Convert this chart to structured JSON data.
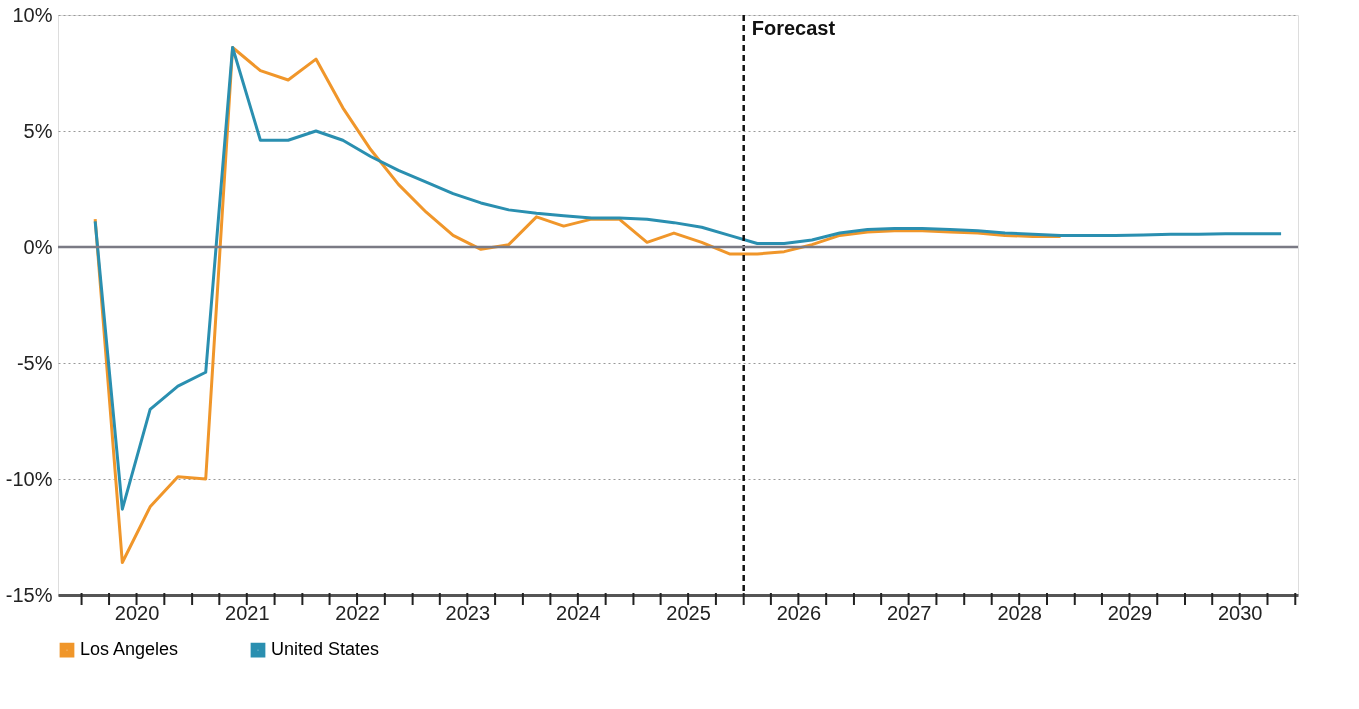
{
  "chart_data": {
    "type": "line",
    "x": [
      "2020-02-15",
      "2020-05-15",
      "2020-08-15",
      "2020-11-15",
      "2021-02-15",
      "2021-05-15",
      "2021-08-15",
      "2021-11-15",
      "2022-02-15",
      "2022-05-15",
      "2022-08-15",
      "2022-11-15",
      "2023-02-15",
      "2023-05-15",
      "2023-08-15",
      "2023-11-15",
      "2024-02-15",
      "2024-05-15",
      "2024-08-15",
      "2024-11-15",
      "2025-02-15",
      "2025-05-15",
      "2025-08-15",
      "2025-11-15",
      "2026-02-15",
      "2026-05-15",
      "2026-08-15",
      "2026-11-15",
      "2027-02-15",
      "2027-05-15",
      "2027-08-15",
      "2027-11-15",
      "2028-02-15",
      "2028-05-15",
      "2028-08-15",
      "2028-11-15",
      "2029-02-15",
      "2029-05-15",
      "2029-08-15",
      "2029-11-15",
      "2030-02-15",
      "2030-05-15",
      "2030-08-15",
      "2030-11-15"
    ],
    "series": [
      {
        "name": "Los Angeles",
        "color": "#f0962a",
        "values": [
          1.2,
          -13.6,
          -11.2,
          -9.9,
          -10.0,
          8.6,
          7.6,
          7.2,
          8.1,
          6.0,
          4.2,
          2.7,
          1.5,
          0.5,
          -0.1,
          0.1,
          1.3,
          0.9,
          1.2,
          1.2,
          0.2,
          0.6,
          0.2,
          -0.3,
          -0.3,
          -0.2,
          0.1,
          0.5,
          0.65,
          0.7,
          0.7,
          0.65,
          0.6,
          0.5,
          0.45,
          0.45,
          null,
          null,
          null,
          null,
          null,
          null,
          null,
          null
        ]
      },
      {
        "name": "United States",
        "color": "#2a8fb0",
        "values": [
          1.1,
          -11.3,
          -7.0,
          -6.0,
          -5.4,
          8.6,
          4.6,
          4.6,
          5.0,
          4.6,
          3.9,
          3.3,
          2.8,
          2.3,
          1.9,
          1.6,
          1.45,
          1.35,
          1.25,
          1.25,
          1.2,
          1.05,
          0.85,
          0.5,
          0.15,
          0.15,
          0.3,
          0.6,
          0.75,
          0.8,
          0.8,
          0.75,
          0.7,
          0.6,
          0.55,
          0.5,
          0.5,
          0.5,
          0.52,
          0.55,
          0.55,
          0.57,
          0.57,
          0.57
        ]
      }
    ],
    "xlim": [
      "2019-10-15",
      "2031-01-10"
    ],
    "xticks": [
      {
        "value": "2020-01-01",
        "label": null
      },
      {
        "value": "2020-04-01",
        "label": null
      },
      {
        "value": "2020-07-01",
        "label": "2020"
      },
      {
        "value": "2020-10-01",
        "label": null
      },
      {
        "value": "2021-01-01",
        "label": null
      },
      {
        "value": "2021-04-01",
        "label": null
      },
      {
        "value": "2021-07-01",
        "label": "2021"
      },
      {
        "value": "2021-10-01",
        "label": null
      },
      {
        "value": "2022-01-01",
        "label": null
      },
      {
        "value": "2022-04-01",
        "label": null
      },
      {
        "value": "2022-07-01",
        "label": "2022"
      },
      {
        "value": "2022-10-01",
        "label": null
      },
      {
        "value": "2023-01-01",
        "label": null
      },
      {
        "value": "2023-04-01",
        "label": null
      },
      {
        "value": "2023-07-01",
        "label": "2023"
      },
      {
        "value": "2023-10-01",
        "label": null
      },
      {
        "value": "2024-01-01",
        "label": null
      },
      {
        "value": "2024-04-01",
        "label": null
      },
      {
        "value": "2024-07-01",
        "label": "2024"
      },
      {
        "value": "2024-10-01",
        "label": null
      },
      {
        "value": "2025-01-01",
        "label": null
      },
      {
        "value": "2025-04-01",
        "label": null
      },
      {
        "value": "2025-07-01",
        "label": "2025"
      },
      {
        "value": "2025-10-01",
        "label": null
      },
      {
        "value": "2026-01-01",
        "label": null
      },
      {
        "value": "2026-04-01",
        "label": null
      },
      {
        "value": "2026-07-01",
        "label": "2026"
      },
      {
        "value": "2026-10-01",
        "label": null
      },
      {
        "value": "2027-01-01",
        "label": null
      },
      {
        "value": "2027-04-01",
        "label": null
      },
      {
        "value": "2027-07-01",
        "label": "2027"
      },
      {
        "value": "2027-10-01",
        "label": null
      },
      {
        "value": "2028-01-01",
        "label": null
      },
      {
        "value": "2028-04-01",
        "label": null
      },
      {
        "value": "2028-07-01",
        "label": "2028"
      },
      {
        "value": "2028-10-01",
        "label": null
      },
      {
        "value": "2029-01-01",
        "label": null
      },
      {
        "value": "2029-04-01",
        "label": null
      },
      {
        "value": "2029-07-01",
        "label": "2029"
      },
      {
        "value": "2029-10-01",
        "label": null
      },
      {
        "value": "2030-01-01",
        "label": null
      },
      {
        "value": "2030-04-01",
        "label": null
      },
      {
        "value": "2030-07-01",
        "label": "2030"
      },
      {
        "value": "2030-10-01",
        "label": null
      },
      {
        "value": "2031-01-01",
        "label": null
      }
    ],
    "ylim": [
      -15,
      10
    ],
    "yticks": [
      {
        "value": -15,
        "label": "-15%"
      },
      {
        "value": -10,
        "label": "-10%"
      },
      {
        "value": -5,
        "label": "-5%"
      },
      {
        "value": 0,
        "label": "0%"
      },
      {
        "value": 5,
        "label": "5%"
      },
      {
        "value": 10,
        "label": "10%"
      }
    ],
    "ref_lines": [
      {
        "axis": "x",
        "value": "2026-01-01",
        "label": "Forecast",
        "color": "#111111",
        "line_style": "dashed"
      },
      {
        "axis": "y",
        "value": 0,
        "label": null,
        "color": "#7a7a84",
        "line_style": "solid"
      }
    ],
    "grid": "y",
    "legend": "bottom",
    "marker": "none",
    "line_style": "solid"
  }
}
